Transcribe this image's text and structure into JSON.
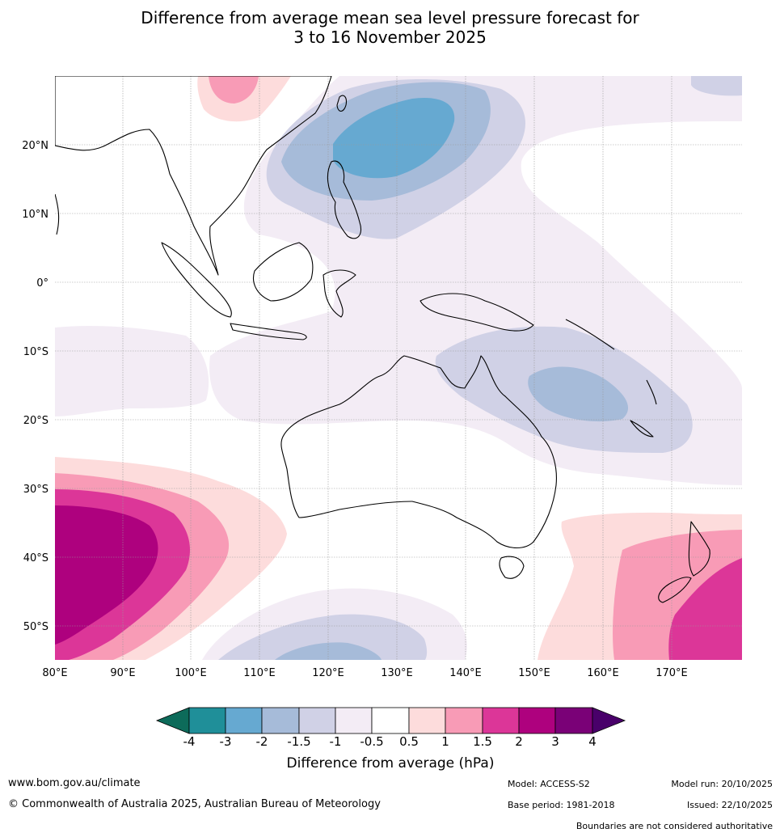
{
  "title": {
    "line1": "Difference from average mean sea level pressure forecast for",
    "line2": "3 to 16 November 2025"
  },
  "map": {
    "lat_labels": [
      "20°N",
      "10°N",
      "0°",
      "10°S",
      "20°S",
      "30°S",
      "40°S",
      "50°S"
    ],
    "lon_labels": [
      "80°E",
      "90°E",
      "100°E",
      "110°E",
      "120°E",
      "130°E",
      "140°E",
      "150°E",
      "160°E",
      "170°E"
    ]
  },
  "colorbar": {
    "title": "Difference from average (hPa)",
    "tick_labels": [
      "-4",
      "-3",
      "-2",
      "-1.5",
      "-1",
      "-0.5",
      "0.5",
      "1",
      "1.5",
      "2",
      "3",
      "4"
    ],
    "colors": {
      "under": "#0d6b5a",
      "c1": "#1f8f99",
      "c2": "#66a9d1",
      "c3": "#a6bbd9",
      "c4": "#d0d1e6",
      "c5": "#f3ecf5",
      "c6": "#ffffff",
      "c7": "#fddcdc",
      "c8": "#f89bb6",
      "c9": "#dc3698",
      "c10": "#ae017e",
      "c11": "#7a0177",
      "over": "#49006a"
    }
  },
  "footer": {
    "url": "www.bom.gov.au/climate",
    "copyright": "© Commonwealth of Australia 2025, Australian Bureau of Meteorology",
    "model": "Model: ACCESS-S2",
    "base_period": "Base period: 1981-2018",
    "model_run": "Model run: 20/10/2025",
    "issued": "Issued: 22/10/2025",
    "disclaimer": "Boundaries are not considered authoritative"
  }
}
